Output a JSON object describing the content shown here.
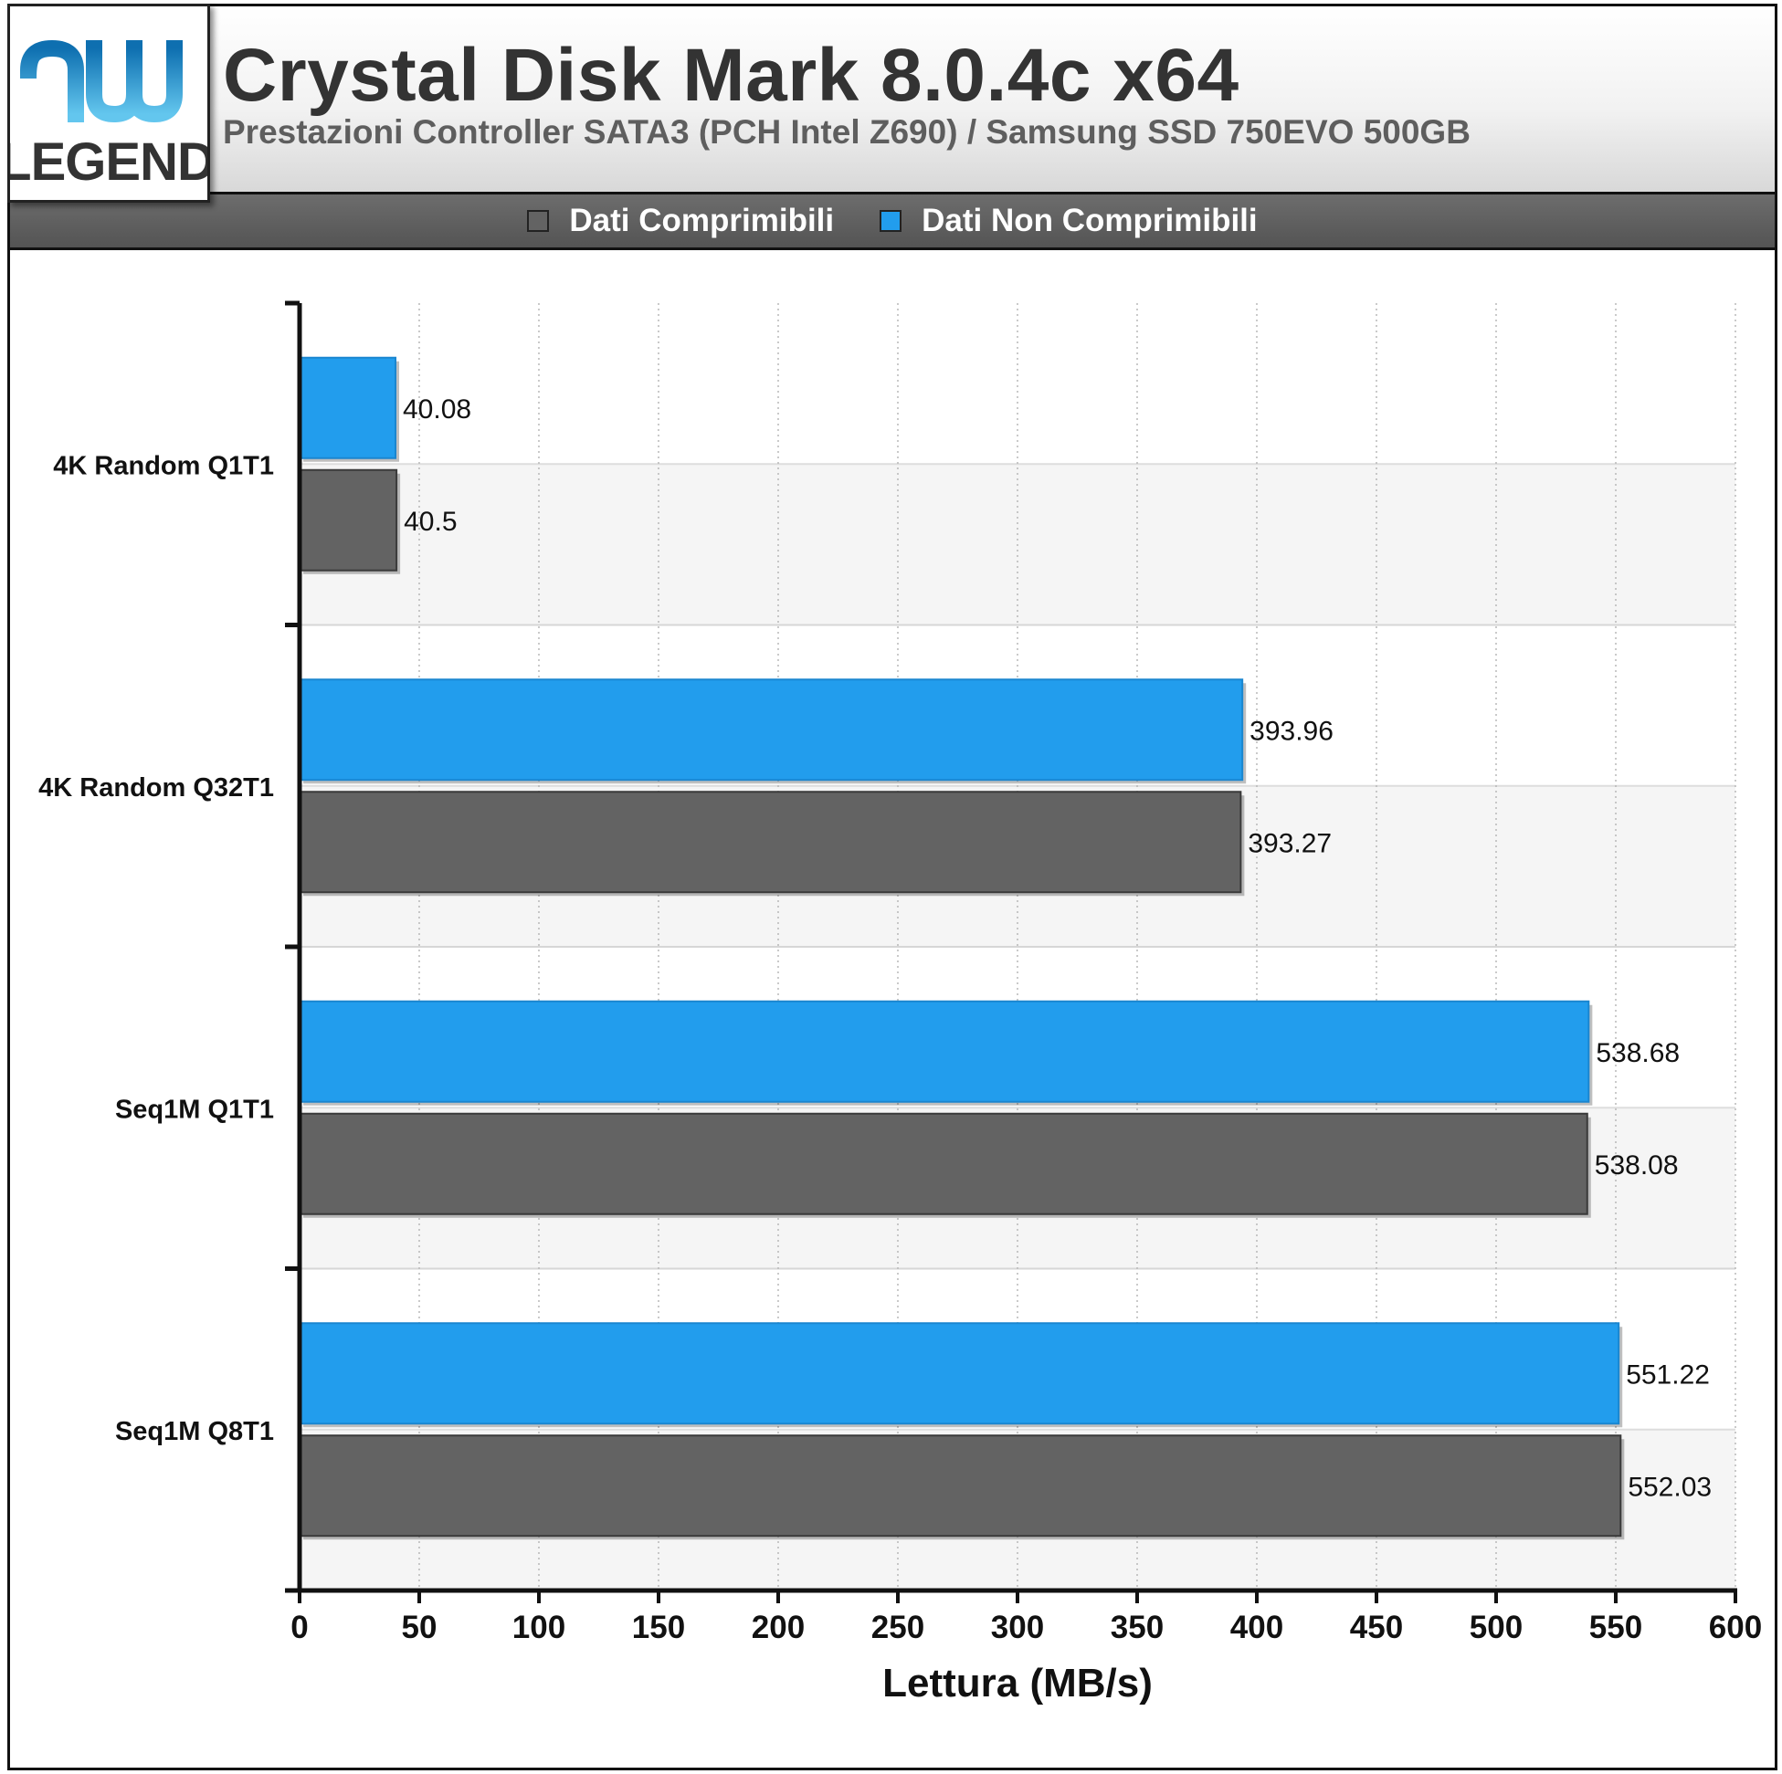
{
  "logo": {
    "mark": "hw",
    "text": "LEGEND"
  },
  "header": {
    "title": "Crystal Disk Mark 8.0.4c x64",
    "subtitle": "Prestazioni Controller SATA3 (PCH Intel Z690) / Samsung SSD 750EVO 500GB"
  },
  "chart_data": {
    "type": "bar",
    "orientation": "horizontal",
    "title": "Crystal Disk Mark 8.0.4c x64",
    "subtitle": "Prestazioni Controller SATA3 (PCH Intel Z690) / Samsung SSD 750EVO 500GB",
    "xlabel": "Lettura (MB/s)",
    "ylabel": "",
    "xlim": [
      0,
      600
    ],
    "xticks": [
      0,
      50,
      100,
      150,
      200,
      250,
      300,
      350,
      400,
      450,
      500,
      550,
      600
    ],
    "categories": [
      "4K Random Q1T1",
      "4K Random Q32T1",
      "Seq1M Q1T1",
      "Seq1M Q8T1"
    ],
    "series": [
      {
        "name": "Dati Comprimibili",
        "color": "#636363",
        "values": [
          40.5,
          393.27,
          538.08,
          552.03
        ]
      },
      {
        "name": "Dati Non Comprimibili",
        "color": "#229ded",
        "values": [
          40.08,
          393.96,
          538.68,
          551.22
        ]
      }
    ],
    "legend_position": "top",
    "grid": true
  }
}
